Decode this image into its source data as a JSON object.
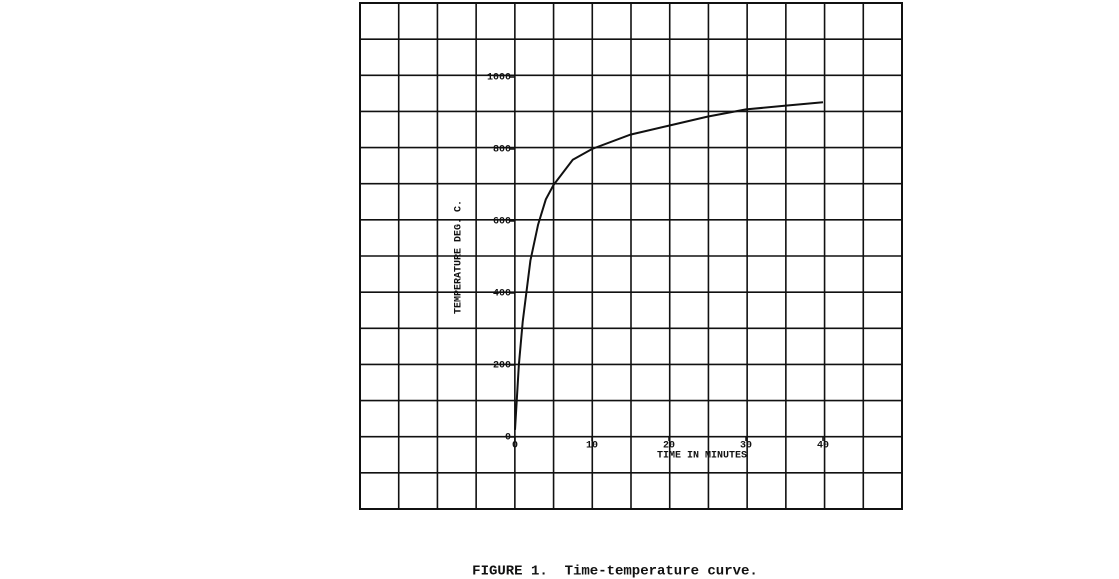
{
  "chart_data": {
    "type": "line",
    "caption": "FIGURE 1.  Time-temperature curve.",
    "x_label": "TIME IN MINUTES",
    "y_label": "TEMPERATURE DEG. C.",
    "x": [
      0,
      0.5,
      1,
      2,
      3,
      4,
      5,
      7.5,
      10,
      15,
      20,
      25,
      30,
      35,
      40
    ],
    "series": [
      {
        "name": "Time-temperature",
        "color": "#111111",
        "values": [
          20,
          200,
          320,
          490,
          590,
          660,
          700,
          770,
          800,
          840,
          865,
          890,
          910,
          920,
          930
        ]
      }
    ],
    "xlim": [
      0,
      40
    ],
    "xticks": [
      0,
      10,
      20,
      30,
      40
    ],
    "ylim": [
      0,
      1000
    ],
    "yticks": [
      0,
      200,
      400,
      600,
      800,
      1000
    ]
  }
}
